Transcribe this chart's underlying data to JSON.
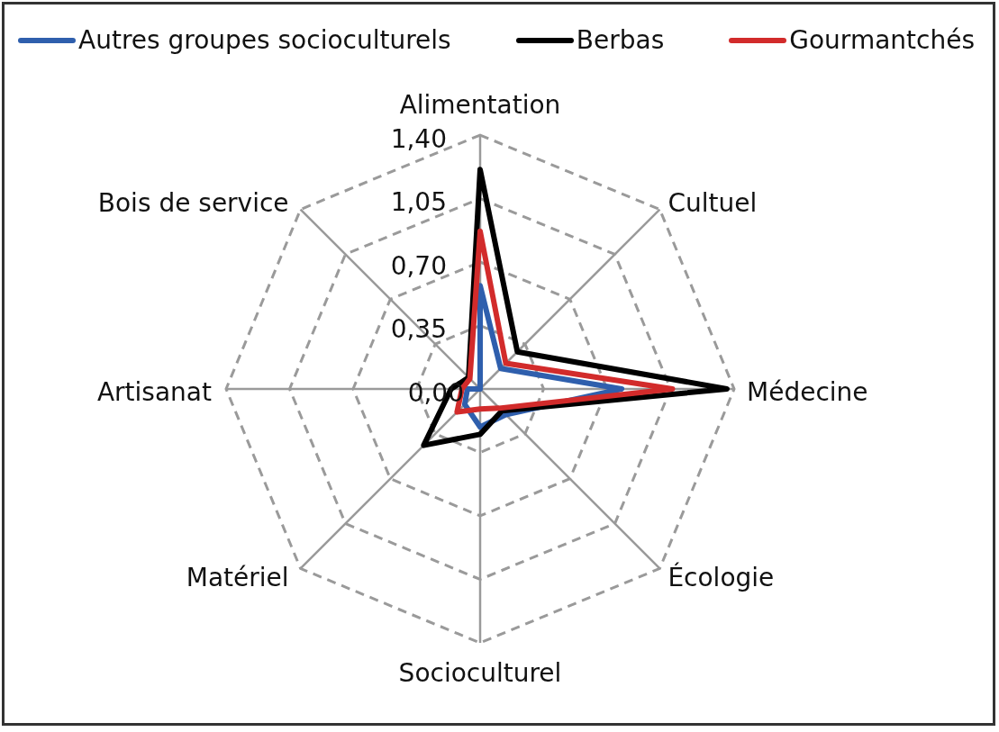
{
  "chart_data": {
    "type": "radar",
    "categories": [
      "Alimentation",
      "Cultuel",
      "Médecine",
      "Écologie",
      "Socioculturel",
      "Matériel",
      "Artisanat",
      "Bois de service"
    ],
    "series": [
      {
        "name": "Autres groupes socioculturels",
        "color": "#2f5fad",
        "values": [
          0.57,
          0.16,
          0.78,
          0.2,
          0.21,
          0.12,
          0.07,
          0
        ]
      },
      {
        "name": "Berbas",
        "color": "#000000",
        "values": [
          1.21,
          0.29,
          1.36,
          0.17,
          0.25,
          0.44,
          0.16,
          0.09
        ]
      },
      {
        "name": "Gourmantchés",
        "color": "#d22b2b",
        "values": [
          0.87,
          0.2,
          1.06,
          0.15,
          0.11,
          0.18,
          0.1,
          0.08
        ]
      }
    ],
    "ylim": [
      0,
      1.4
    ],
    "yticks": [
      {
        "value": 0,
        "label": "0,00"
      },
      {
        "value": 0.35,
        "label": "0,35"
      },
      {
        "value": 0.7,
        "label": "0,70"
      },
      {
        "value": 1.05,
        "label": "1,05"
      },
      {
        "value": 1.4,
        "label": "1,40"
      }
    ],
    "grid": true,
    "legend": "top"
  }
}
